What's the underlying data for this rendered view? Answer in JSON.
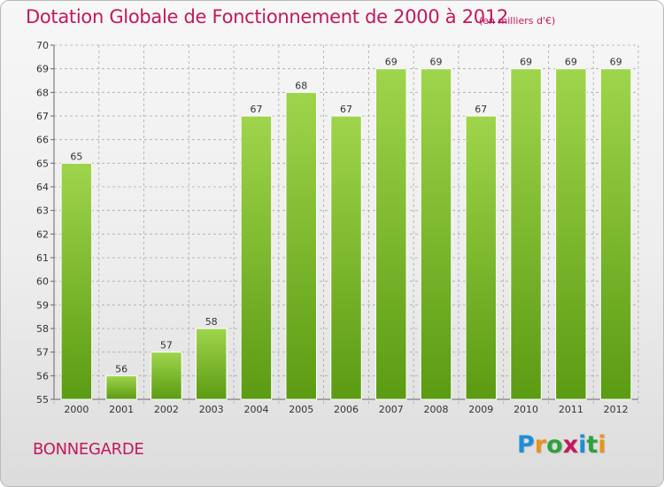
{
  "header": {
    "title": "Dotation Globale de Fonctionnement de 2000 à 2012",
    "unit": "(en milliers d'€)"
  },
  "footer": {
    "commune": "BONNEGARDE",
    "logo": {
      "letters": [
        "P",
        "r",
        "o",
        "x",
        "i",
        "t",
        "i"
      ],
      "colors": [
        "#1e8fd6",
        "#e9931c",
        "#2ba33b",
        "#c2195b",
        "#1e8fd6",
        "#2ba33b",
        "#e9931c"
      ]
    }
  },
  "colors": {
    "title": "#c2195b",
    "bar_top": "#9fd54c",
    "bar_bottom": "#5b9b12",
    "grid": "#aaaaaa"
  },
  "chart_data": {
    "type": "bar",
    "title": "Dotation Globale de Fonctionnement de 2000 à 2012",
    "subtitle": "(en milliers d'€)",
    "categories": [
      "2000",
      "2001",
      "2002",
      "2003",
      "2004",
      "2005",
      "2006",
      "2007",
      "2008",
      "2009",
      "2010",
      "2011",
      "2012"
    ],
    "values": [
      65,
      56,
      57,
      58,
      67,
      68,
      67,
      69,
      69,
      67,
      69,
      69,
      69
    ],
    "ylim": [
      55,
      70
    ],
    "yticks": [
      55,
      56,
      57,
      58,
      59,
      60,
      61,
      62,
      63,
      64,
      65,
      66,
      67,
      68,
      69,
      70
    ],
    "grid": true,
    "data_labels": true
  }
}
